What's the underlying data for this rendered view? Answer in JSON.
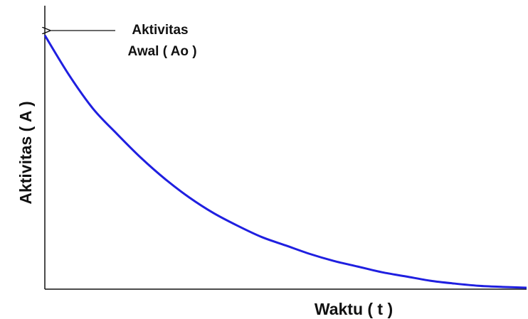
{
  "chart_data": {
    "type": "line",
    "xlabel": "Waktu ( t )",
    "ylabel": "Aktivitas ( A )",
    "annotation": [
      "Aktivitas",
      "Awal ( Ao )"
    ],
    "x": [
      0,
      0.5,
      1,
      1.5,
      2,
      2.5,
      3,
      3.5,
      4,
      4.5,
      5,
      5.5,
      6,
      6.5,
      7,
      7.5,
      8,
      8.5,
      9,
      9.5,
      10
    ],
    "series": [
      {
        "color": "#1f1fe0",
        "values": [
          90,
          76,
          64,
          55,
          46.5,
          39,
          32.5,
          27,
          22.5,
          18.5,
          15.5,
          12.5,
          10,
          8,
          6,
          4.5,
          3,
          2,
          1.2,
          0.8,
          0.5
        ]
      }
    ],
    "xlim": [
      0,
      10
    ],
    "ylim": [
      0,
      100
    ]
  }
}
